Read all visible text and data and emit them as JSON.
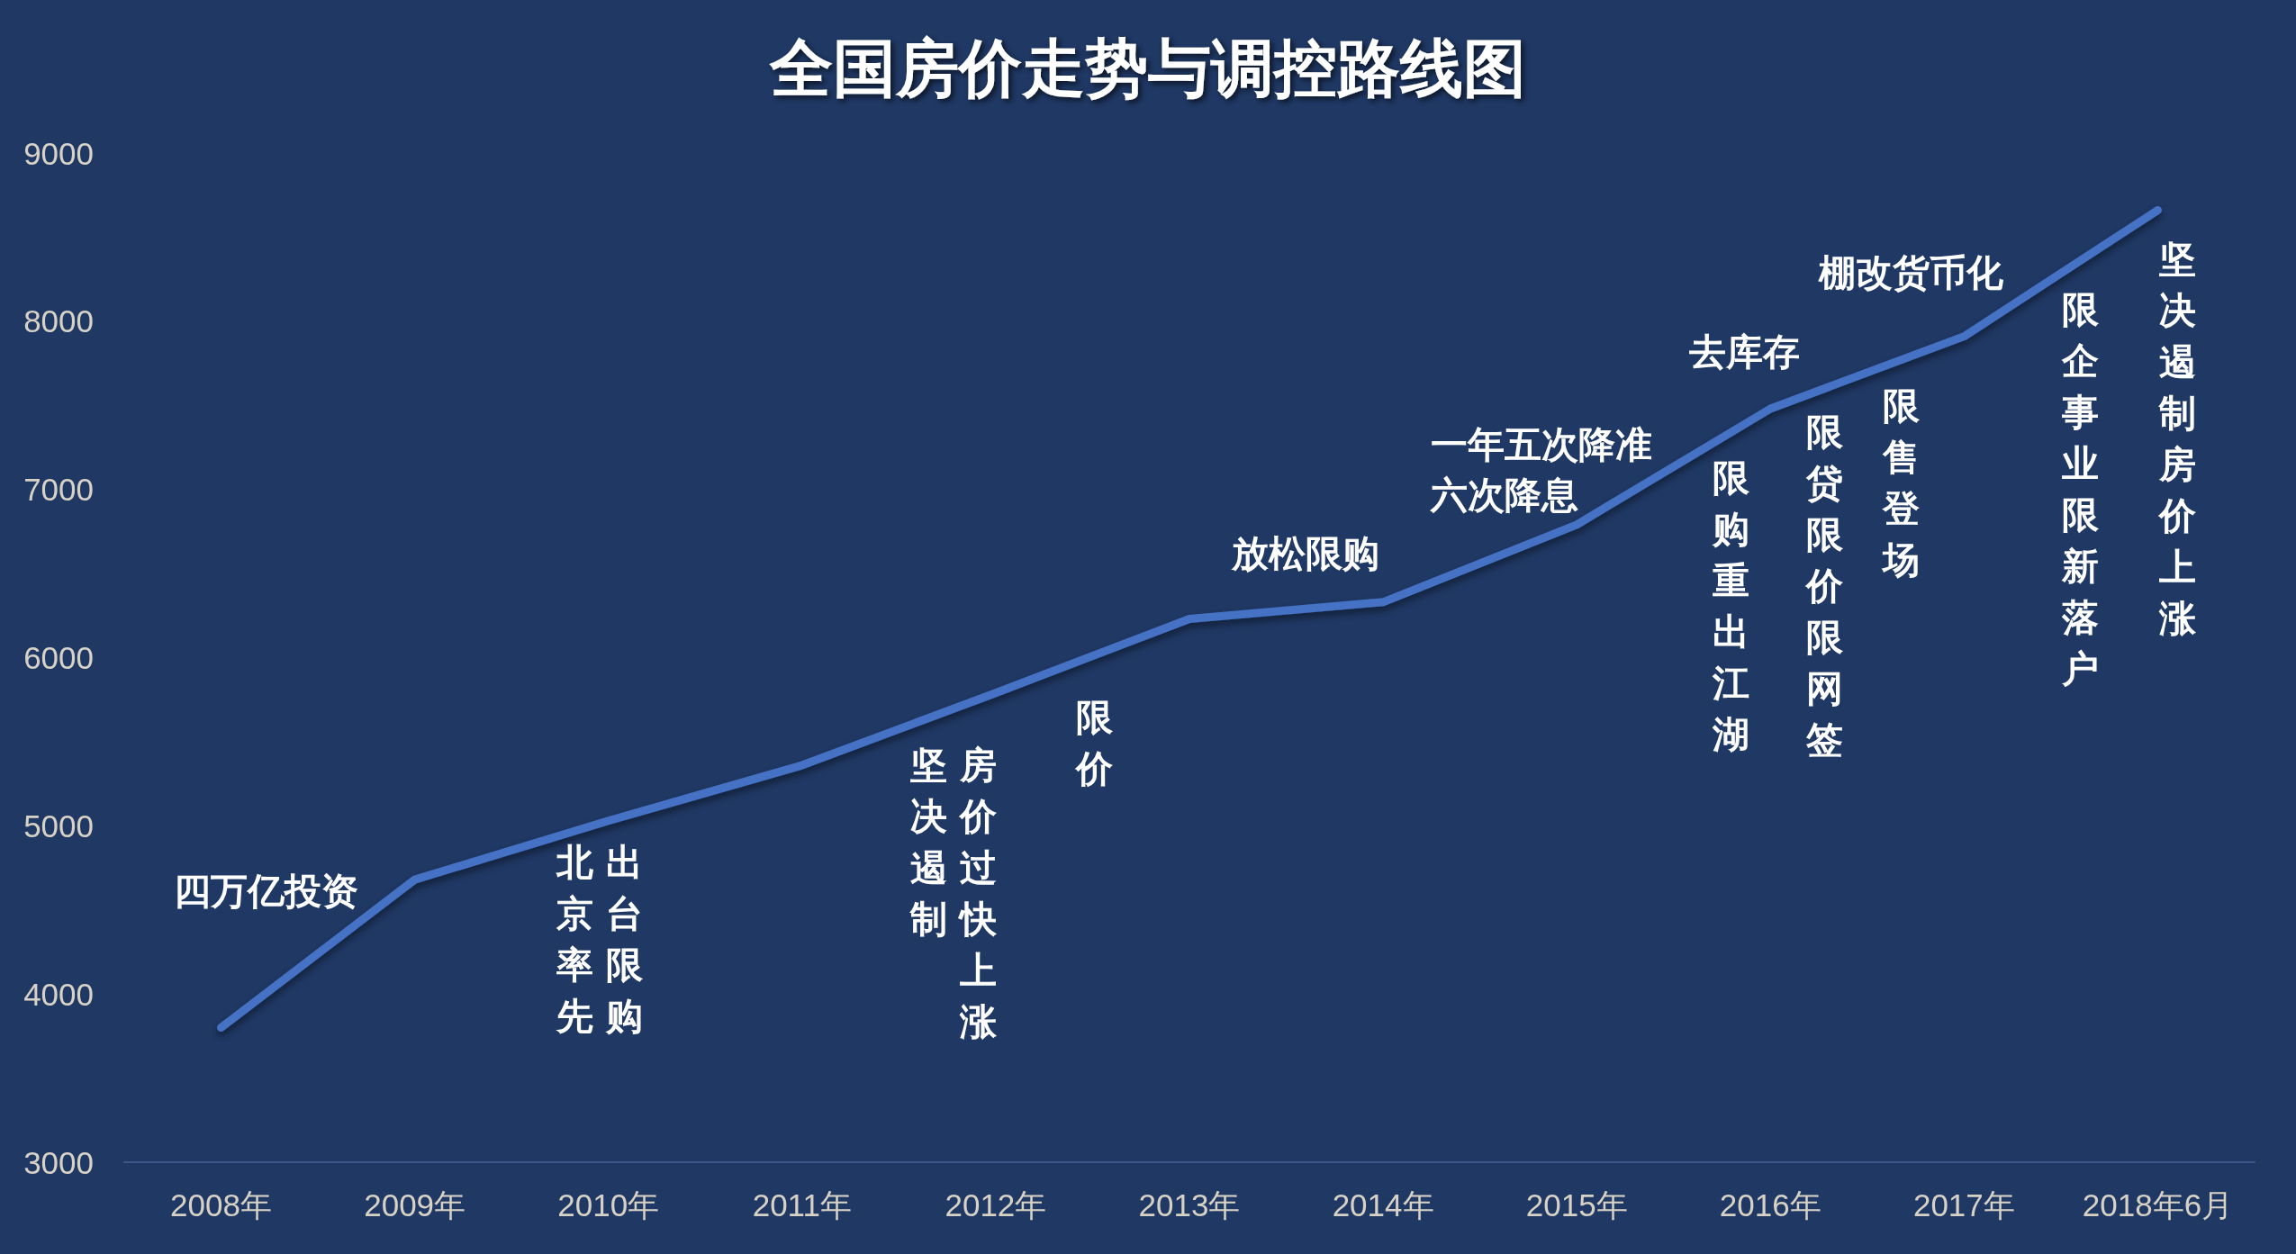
{
  "chart_data": {
    "type": "line",
    "title": "全国房价走势与调控路线图",
    "categories": [
      "2008年",
      "2009年",
      "2010年",
      "2011年",
      "2012年",
      "2013年",
      "2014年",
      "2015年",
      "2016年",
      "2017年",
      "2018年6月"
    ],
    "values": [
      3800,
      4680,
      5030,
      5360,
      5790,
      6230,
      6330,
      6790,
      7480,
      7910,
      8660
    ],
    "color": "#4472c4",
    "marker": "none",
    "line_style": "solid",
    "ylim": [
      3000,
      9000
    ],
    "yticks": [
      3000,
      4000,
      5000,
      6000,
      7000,
      8000,
      9000
    ],
    "annotations": [
      "四万亿投资",
      "北京率先",
      "出台限购",
      "坚决遏制",
      "房价过快上涨",
      "限价",
      "放松限购",
      "一年五次降准六次降息",
      "去库存",
      "限购重出江湖",
      "限贷限价限网签",
      "限售登场",
      "棚改货币化",
      "限企事业限新落户",
      "坚决遏制房价上涨"
    ]
  }
}
